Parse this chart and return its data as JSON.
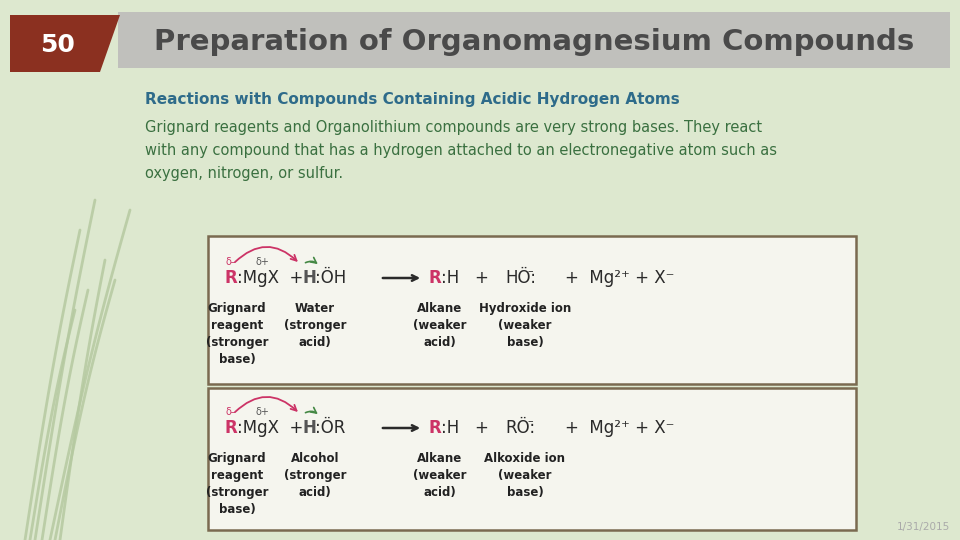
{
  "bg_color": "#dde8cf",
  "title_text": "Preparation of Organomagnesium Compounds",
  "title_bg": "#c0c0bc",
  "title_color": "#4a4a4a",
  "slide_number": "50",
  "slide_num_bg": "#8b3020",
  "slide_num_color": "#ffffff",
  "subtitle": "Reactions with Compounds Containing Acidic Hydrogen Atoms",
  "subtitle_color": "#2e6b8a",
  "body_text": "Grignard reagents and Organolithium compounds are very strong bases. They react\nwith any compound that has a hydrogen attached to an electronegative atom such as\noxygen, nitrogen, or sulfur.",
  "body_color": "#3a7040",
  "date_text": "1/31/2015",
  "date_color": "#aaaaaa",
  "box1_label1": "Grignard\nreagent\n(stronger\nbase)",
  "box1_label2": "Water\n(stronger\nacid)",
  "box1_label3": "Alkane\n(weaker\nacid)",
  "box1_label4": "Hydroxide ion\n(weaker\nbase)",
  "box2_label1": "Grignard\nreagent\n(stronger\nbase)",
  "box2_label2": "Alcohol\n(stronger\nacid)",
  "box2_label3": "Alkane\n(weaker\nacid)",
  "box2_label4": "Alkoxide ion\n(weaker\nbase)",
  "box_bg": "#f5f5ee",
  "box_border": "#7a6a50",
  "reaction_color": "#2a2a2a",
  "r_color": "#cc3366",
  "h_color": "#555555",
  "label_color": "#222222",
  "delta_minus_color": "#cc3366",
  "delta_plus_color": "#555555",
  "arrow_curved_color": "#cc3366",
  "arrow_curved2_color": "#448844",
  "grass_color": "#b5c9a0"
}
